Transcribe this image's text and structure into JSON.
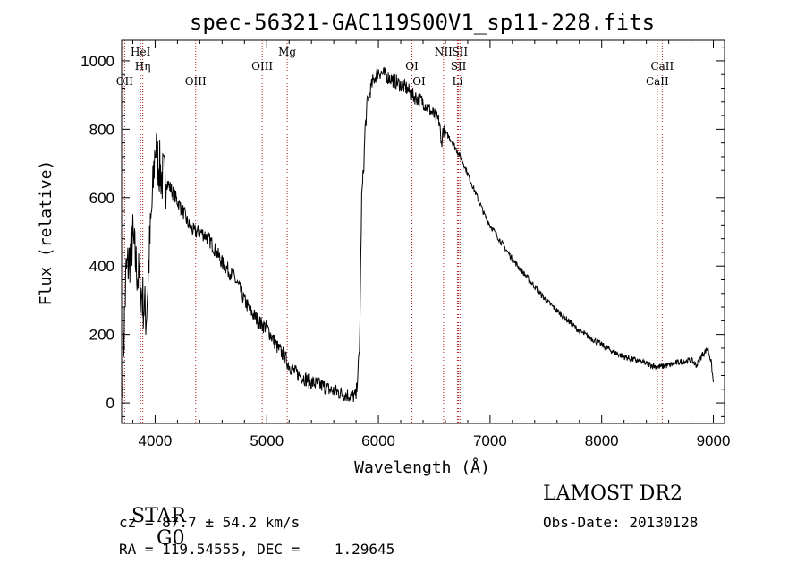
{
  "chart_data": {
    "type": "line",
    "title": "spec-56321-GAC119S00V1_sp11-228.fits",
    "xlabel": "Wavelength (Å)",
    "ylabel": "Flux (relative)",
    "xlim": [
      3700,
      9100
    ],
    "ylim": [
      -60,
      1060
    ],
    "x_ticks": [
      4000,
      5000,
      6000,
      7000,
      8000,
      9000
    ],
    "y_ticks": [
      0,
      200,
      400,
      600,
      800,
      1000
    ],
    "grid": false,
    "legend": "none",
    "line_color": "#000000",
    "marker_color": "#b22222",
    "series": [
      {
        "x": [
          3710,
          3740,
          3770,
          3800,
          3830,
          3860,
          3890,
          3920,
          3950,
          3980,
          4000,
          4030,
          4060,
          4100,
          4150,
          4200,
          4250,
          4300,
          4350,
          4400,
          4450,
          4500,
          4550,
          4600,
          4650,
          4700,
          4750,
          4800,
          4850,
          4900,
          4950,
          5000,
          5050,
          5100,
          5150,
          5200,
          5250,
          5300,
          5350,
          5400,
          5450,
          5500,
          5550,
          5600,
          5650,
          5700,
          5750,
          5800,
          5830,
          5850,
          5870,
          5880,
          5890,
          5900,
          5950,
          6000,
          6050,
          6100,
          6150,
          6200,
          6250,
          6300,
          6350,
          6400,
          6450,
          6500,
          6550,
          6560,
          6580,
          6600,
          6650,
          6700,
          6750,
          6800,
          6850,
          6900,
          6950,
          7000,
          7100,
          7200,
          7300,
          7400,
          7500,
          7600,
          7700,
          7800,
          7900,
          8000,
          8100,
          8200,
          8300,
          8400,
          8500,
          8600,
          8700,
          8800,
          8850,
          8900,
          8950,
          8980,
          9000
        ],
        "y": [
          100,
          380,
          420,
          480,
          400,
          350,
          300,
          250,
          450,
          620,
          750,
          700,
          660,
          650,
          620,
          590,
          560,
          520,
          500,
          500,
          490,
          470,
          440,
          410,
          390,
          370,
          340,
          300,
          270,
          250,
          230,
          220,
          190,
          160,
          140,
          110,
          90,
          80,
          70,
          60,
          55,
          50,
          40,
          35,
          30,
          25,
          20,
          20,
          150,
          600,
          700,
          800,
          830,
          880,
          940,
          970,
          960,
          950,
          940,
          930,
          920,
          900,
          890,
          880,
          860,
          840,
          820,
          750,
          800,
          790,
          770,
          740,
          710,
          670,
          630,
          590,
          550,
          520,
          470,
          420,
          380,
          340,
          300,
          270,
          240,
          210,
          190,
          170,
          150,
          135,
          125,
          115,
          105,
          110,
          120,
          125,
          110,
          140,
          160,
          120,
          60
        ]
      }
    ],
    "line_markers": [
      {
        "x": 3727,
        "label": "OII",
        "row": 3
      },
      {
        "x": 3870,
        "label": "HeI",
        "row": 1
      },
      {
        "x": 3889,
        "label": "Hη",
        "row": 2
      },
      {
        "x": 4363,
        "label": "OIII",
        "row": 3
      },
      {
        "x": 4959,
        "label": "OIII",
        "row": 2
      },
      {
        "x": 5183,
        "label": "Mg",
        "row": 1
      },
      {
        "x": 6300,
        "label": "OI",
        "row": 2
      },
      {
        "x": 6364,
        "label": "OI",
        "row": 3
      },
      {
        "x": 6583,
        "label": "NII",
        "row": 1
      },
      {
        "x": 6708,
        "label": "Li",
        "row": 3
      },
      {
        "x": 6717,
        "label": "SII",
        "row": 2
      },
      {
        "x": 6731,
        "label": "SII",
        "row": 1
      },
      {
        "x": 8498,
        "label": "CaII",
        "row": 3
      },
      {
        "x": 8542,
        "label": "CaII",
        "row": 2
      }
    ]
  },
  "info": {
    "class": "STAR",
    "subclass": "G0",
    "survey": "LAMOST DR2",
    "cz": "cz = 87.7 ± 54.2 km/s",
    "obs_date": "Obs-Date: 20130128",
    "coords": "RA = 119.54555, DEC =    1.29645"
  }
}
